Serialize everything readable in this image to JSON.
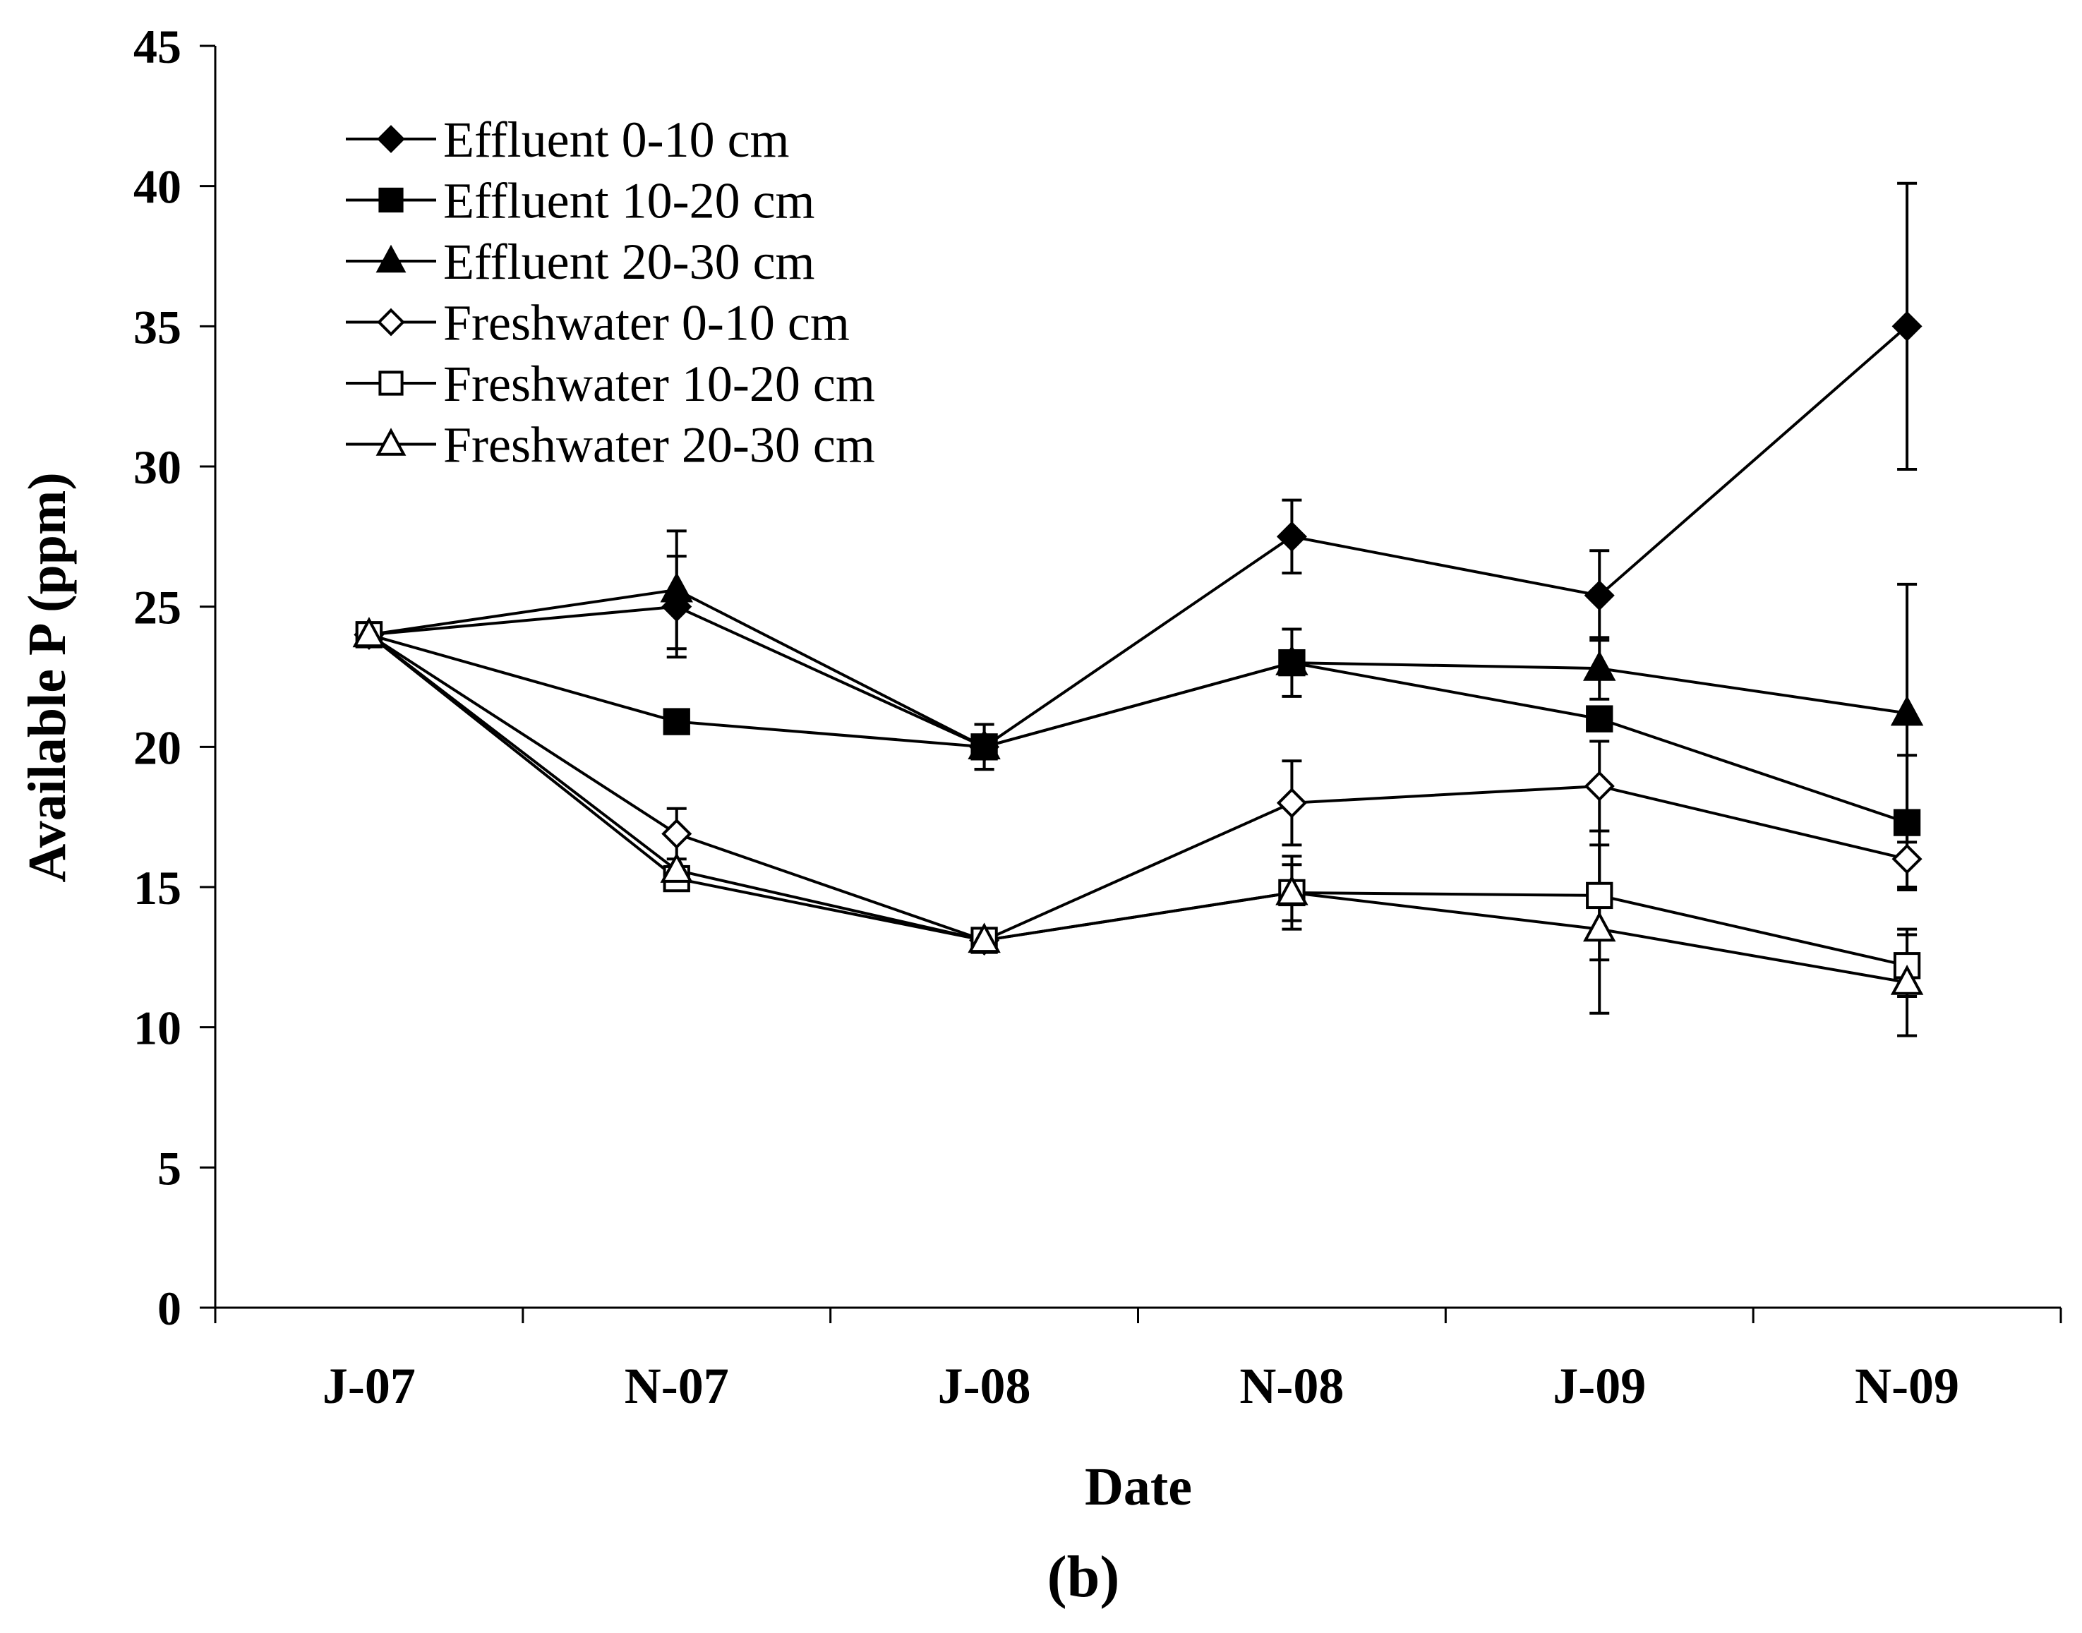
{
  "chart_data": {
    "type": "line",
    "title": "",
    "panel_label": "(b)",
    "xlabel": "Date",
    "ylabel": "Available P (ppm)",
    "ylim": [
      0,
      45
    ],
    "yticks": [
      0,
      5,
      10,
      15,
      20,
      25,
      30,
      35,
      40,
      45
    ],
    "ytick_labels": [
      "0",
      "5",
      "10",
      "15",
      "20",
      "25",
      "30",
      "35",
      "40",
      "45"
    ],
    "categories": [
      "J-07",
      "N-07",
      "J-08",
      "N-08",
      "J-09",
      "N-09"
    ],
    "grid": false,
    "legend_position": "top-left",
    "series": [
      {
        "name": "Effluent 0-10 cm",
        "marker": "diamond",
        "filled": true,
        "values": [
          24.0,
          25.0,
          20.0,
          27.5,
          25.4,
          35.0
        ],
        "errors": [
          0,
          1.8,
          0.8,
          1.3,
          1.6,
          5.1
        ]
      },
      {
        "name": "Effluent 10-20 cm",
        "marker": "square",
        "filled": true,
        "values": [
          24.0,
          20.9,
          20.0,
          23.0,
          21.0,
          17.3
        ],
        "errors": [
          0,
          0,
          0.8,
          1.2,
          0,
          2.4
        ]
      },
      {
        "name": "Effluent 20-30 cm",
        "marker": "triangle",
        "filled": true,
        "values": [
          24.0,
          25.6,
          20.0,
          23.0,
          22.8,
          21.2
        ],
        "errors": [
          0,
          2.1,
          0,
          0,
          1.1,
          4.6
        ]
      },
      {
        "name": "Freshwater 0-10 cm",
        "marker": "diamond",
        "filled": false,
        "values": [
          24.0,
          16.9,
          13.1,
          18.0,
          18.6,
          16.0
        ],
        "errors": [
          0,
          0.9,
          0,
          1.5,
          1.6,
          1.0
        ]
      },
      {
        "name": "Freshwater 10-20 cm",
        "marker": "square",
        "filled": false,
        "values": [
          24.0,
          15.3,
          13.1,
          14.8,
          14.7,
          12.2
        ],
        "errors": [
          0,
          0,
          0,
          1.3,
          2.3,
          1.1
        ]
      },
      {
        "name": "Freshwater 20-30 cm",
        "marker": "triangle",
        "filled": false,
        "values": [
          24.0,
          15.6,
          13.1,
          14.8,
          13.5,
          11.6
        ],
        "errors": [
          0,
          0,
          0,
          1.0,
          3.0,
          1.9
        ]
      }
    ]
  }
}
